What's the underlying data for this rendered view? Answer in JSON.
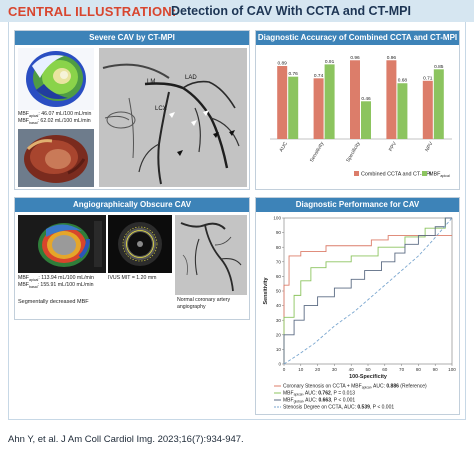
{
  "header": {
    "label": "CENTRAL ILLUSTRATION:",
    "title": "Detection of CAV With CCTA and CT-MPI"
  },
  "panel_severe": {
    "title": "Severe CAV by CT-MPI",
    "mbf_line1_label": "MBF",
    "mbf_line1_sub": "apical",
    "mbf_line1_value": ": 46.07 mL/100 mL/min",
    "mbf_line2_label": "MBF",
    "mbf_line2_sub": "basal",
    "mbf_line2_value": ": 62.02 mL/100 mL/min",
    "angio_labels": [
      "LM",
      "LAD",
      "LCX"
    ]
  },
  "panel_obscure": {
    "title": "Angiographically Obscure CAV",
    "mbf_line1_label": "MBF",
    "mbf_line1_sub": "apical",
    "mbf_line1_value": ": 113.94 mL/100 mL/min",
    "mbf_line2_label": "MBF",
    "mbf_line2_sub": "basal",
    "mbf_line2_value": ": 155.91 mL/100 mL/min",
    "ivus_text": "IVUS MIT = 1.20 mm",
    "caption_left": "Segmentally decreased MBF",
    "caption_right": "Normal coronary artery angiography"
  },
  "colors": {
    "ccta_ctmpi": "#dc7d6a",
    "mbf": "#8cc45f",
    "panel_header": "#3d83b8",
    "header_bg": "#d6e6f1",
    "header_label": "#d8462f",
    "header_title": "#1d3554"
  },
  "chart_data": [
    {
      "type": "bar",
      "title": "Diagnostic Accuracy of Combined CCTA and CT-MPI",
      "categories": [
        "AUC",
        "Sensitivity",
        "Specificity",
        "PPV",
        "NPV"
      ],
      "series": [
        {
          "name": "Combined CCTA and CT-MPI",
          "values": [
            0.89,
            0.74,
            0.96,
            0.96,
            0.71
          ],
          "labels": [
            "0.89",
            "0.74",
            "0.96",
            "0.96",
            "0.71"
          ]
        },
        {
          "name": "MBF",
          "name_sub": "apical",
          "values": [
            0.76,
            0.91,
            0.46,
            0.68,
            0.85
          ],
          "labels": [
            "0.76",
            "0.91",
            "0.46",
            "0.68",
            "0.85"
          ]
        }
      ],
      "ylim": [
        0,
        1
      ]
    },
    {
      "type": "line",
      "title": "Diagnostic Performance for CAV",
      "xlabel": "100-Specificity",
      "ylabel": "Sensitivity",
      "xlim": [
        0,
        100
      ],
      "ylim": [
        0,
        100
      ],
      "xticks": [
        "0",
        "10",
        "20",
        "30",
        "40",
        "50",
        "60",
        "70",
        "80",
        "90",
        "100"
      ],
      "yticks": [
        "0",
        "10",
        "20",
        "30",
        "40",
        "50",
        "60",
        "70",
        "80",
        "90",
        "100"
      ],
      "series": [
        {
          "name_parts": [
            "Coronary Stenosis on CCTA + MBF",
            "apical",
            ", AUC: ",
            "0.886",
            " (Reference)"
          ],
          "color": "#dc7d6a",
          "dash": "",
          "points": [
            [
              0,
              0
            ],
            [
              0,
              54
            ],
            [
              3,
              54
            ],
            [
              3,
              74
            ],
            [
              10,
              74
            ],
            [
              10,
              77
            ],
            [
              25,
              77
            ],
            [
              25,
              81
            ],
            [
              52,
              81
            ],
            [
              52,
              85
            ],
            [
              62,
              85
            ],
            [
              62,
              88
            ],
            [
              100,
              88
            ]
          ]
        },
        {
          "name_parts": [
            "MBF",
            "apical",
            ", AUC: ",
            "0.762",
            ", P = 0.013"
          ],
          "color": "#8cc45f",
          "dash": "",
          "points": [
            [
              0,
              0
            ],
            [
              0,
              32
            ],
            [
              6,
              32
            ],
            [
              6,
              47
            ],
            [
              10,
              47
            ],
            [
              10,
              57
            ],
            [
              16,
              57
            ],
            [
              16,
              66
            ],
            [
              25,
              66
            ],
            [
              25,
              70
            ],
            [
              40,
              70
            ],
            [
              40,
              74
            ],
            [
              56,
              74
            ],
            [
              56,
              80
            ],
            [
              72,
              80
            ],
            [
              72,
              87
            ],
            [
              84,
              87
            ],
            [
              84,
              93
            ],
            [
              96,
              93
            ],
            [
              96,
              100
            ],
            [
              100,
              100
            ]
          ]
        },
        {
          "name_parts": [
            "MBF",
            "global",
            ", AUC: ",
            "0.663",
            ", P < 0.001"
          ],
          "color": "#5b6b83",
          "dash": "",
          "points": [
            [
              0,
              0
            ],
            [
              0,
              20
            ],
            [
              6,
              20
            ],
            [
              6,
              30
            ],
            [
              12,
              30
            ],
            [
              12,
              40
            ],
            [
              20,
              40
            ],
            [
              20,
              46
            ],
            [
              30,
              46
            ],
            [
              30,
              52
            ],
            [
              40,
              52
            ],
            [
              40,
              58
            ],
            [
              48,
              58
            ],
            [
              48,
              64
            ],
            [
              58,
              64
            ],
            [
              58,
              70
            ],
            [
              66,
              70
            ],
            [
              66,
              76
            ],
            [
              72,
              76
            ],
            [
              72,
              82
            ],
            [
              80,
              82
            ],
            [
              80,
              88
            ],
            [
              90,
              88
            ],
            [
              90,
              94
            ],
            [
              96,
              94
            ],
            [
              96,
              100
            ],
            [
              100,
              100
            ]
          ]
        },
        {
          "name_parts": [
            "Stenosis Degree on CCTA, AUC: ",
            "",
            "",
            "0.539",
            ", P < 0.001"
          ],
          "color": "#7aa6cf",
          "dash": "3,2",
          "points": [
            [
              0,
              0
            ],
            [
              8,
              6
            ],
            [
              18,
              14
            ],
            [
              30,
              26
            ],
            [
              42,
              36
            ],
            [
              52,
              46
            ],
            [
              62,
              56
            ],
            [
              72,
              66
            ],
            [
              80,
              74
            ],
            [
              88,
              84
            ],
            [
              94,
              92
            ],
            [
              100,
              100
            ]
          ]
        }
      ]
    }
  ],
  "citation": "Ahn Y, et al. J Am Coll Cardiol Img. 2023;16(7):934-947."
}
